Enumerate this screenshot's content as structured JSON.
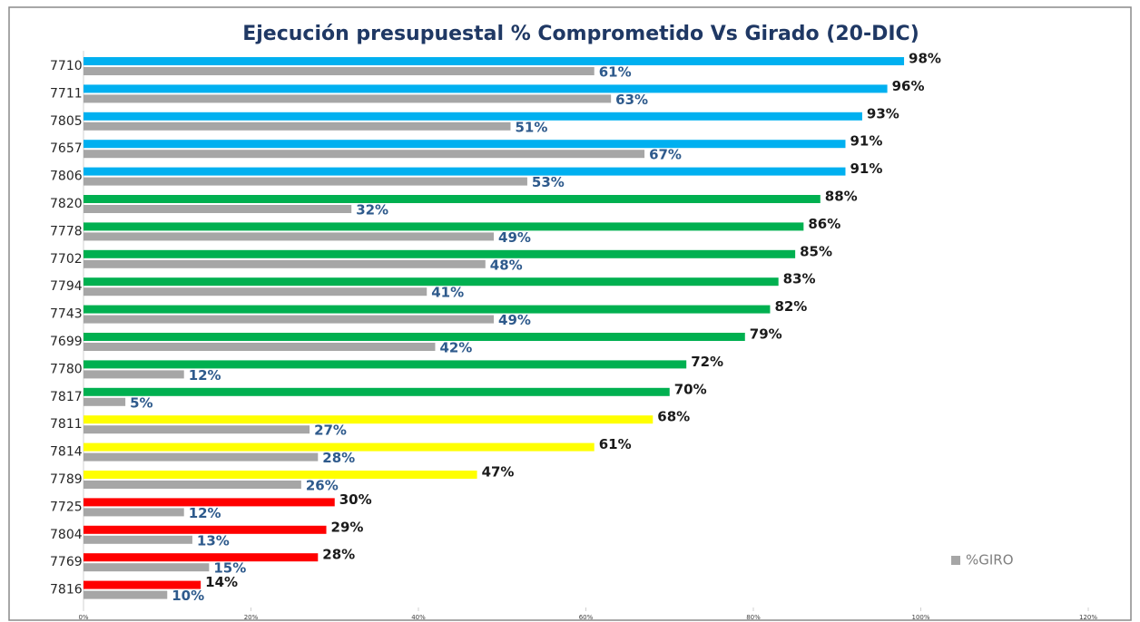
{
  "chart_data": {
    "type": "hbar",
    "title": "Ejecución presupuestal % Comprometido Vs Girado (20-DIC)",
    "categories": [
      "7710",
      "7711",
      "7805",
      "7657",
      "7806",
      "7820",
      "7778",
      "7702",
      "7794",
      "7743",
      "7699",
      "7780",
      "7817",
      "7811",
      "7814",
      "7789",
      "7725",
      "7804",
      "7769",
      "7816"
    ],
    "series": [
      {
        "colors": [
          "#00b0f0",
          "#00b0f0",
          "#00b0f0",
          "#00b0f0",
          "#00b0f0",
          "#00b050",
          "#00b050",
          "#00b050",
          "#00b050",
          "#00b050",
          "#00b050",
          "#00b050",
          "#00b050",
          "#ffff00",
          "#ffff00",
          "#ffff00",
          "#ff0000",
          "#ff0000",
          "#ff0000",
          "#ff0000"
        ],
        "values": [
          98,
          96,
          93,
          91,
          91,
          88,
          86,
          85,
          83,
          82,
          79,
          72,
          70,
          68,
          61,
          47,
          30,
          29,
          28,
          14
        ],
        "value_labels": [
          "98%",
          "96%",
          "93%",
          "91%",
          "91%",
          "88%",
          "86%",
          "85%",
          "83%",
          "82%",
          "79%",
          "72%",
          "70%",
          "68%",
          "61%",
          "47%",
          "30%",
          "29%",
          "28%",
          "14%"
        ]
      },
      {
        "name": "%GIRO",
        "color": "#a6a6a6",
        "values": [
          61,
          63,
          51,
          67,
          53,
          32,
          49,
          48,
          41,
          49,
          42,
          12,
          5,
          27,
          28,
          26,
          12,
          13,
          15,
          10
        ],
        "value_labels": [
          "61%",
          "63%",
          "51%",
          "67%",
          "53%",
          "32%",
          "49%",
          "48%",
          "41%",
          "49%",
          "42%",
          "12%",
          "5%",
          "27%",
          "28%",
          "26%",
          "12%",
          "13%",
          "15%",
          "10%"
        ]
      }
    ],
    "xlim": [
      0,
      120
    ],
    "xticks": [
      {
        "value": 0,
        "label": "0%"
      },
      {
        "value": 20,
        "label": "20%"
      },
      {
        "value": 40,
        "label": "40%"
      },
      {
        "value": 60,
        "label": "60%"
      },
      {
        "value": 80,
        "label": "80%"
      },
      {
        "value": 100,
        "label": "100%"
      },
      {
        "value": 120,
        "label": "120%"
      }
    ],
    "grid": false,
    "legend": "lower right"
  }
}
